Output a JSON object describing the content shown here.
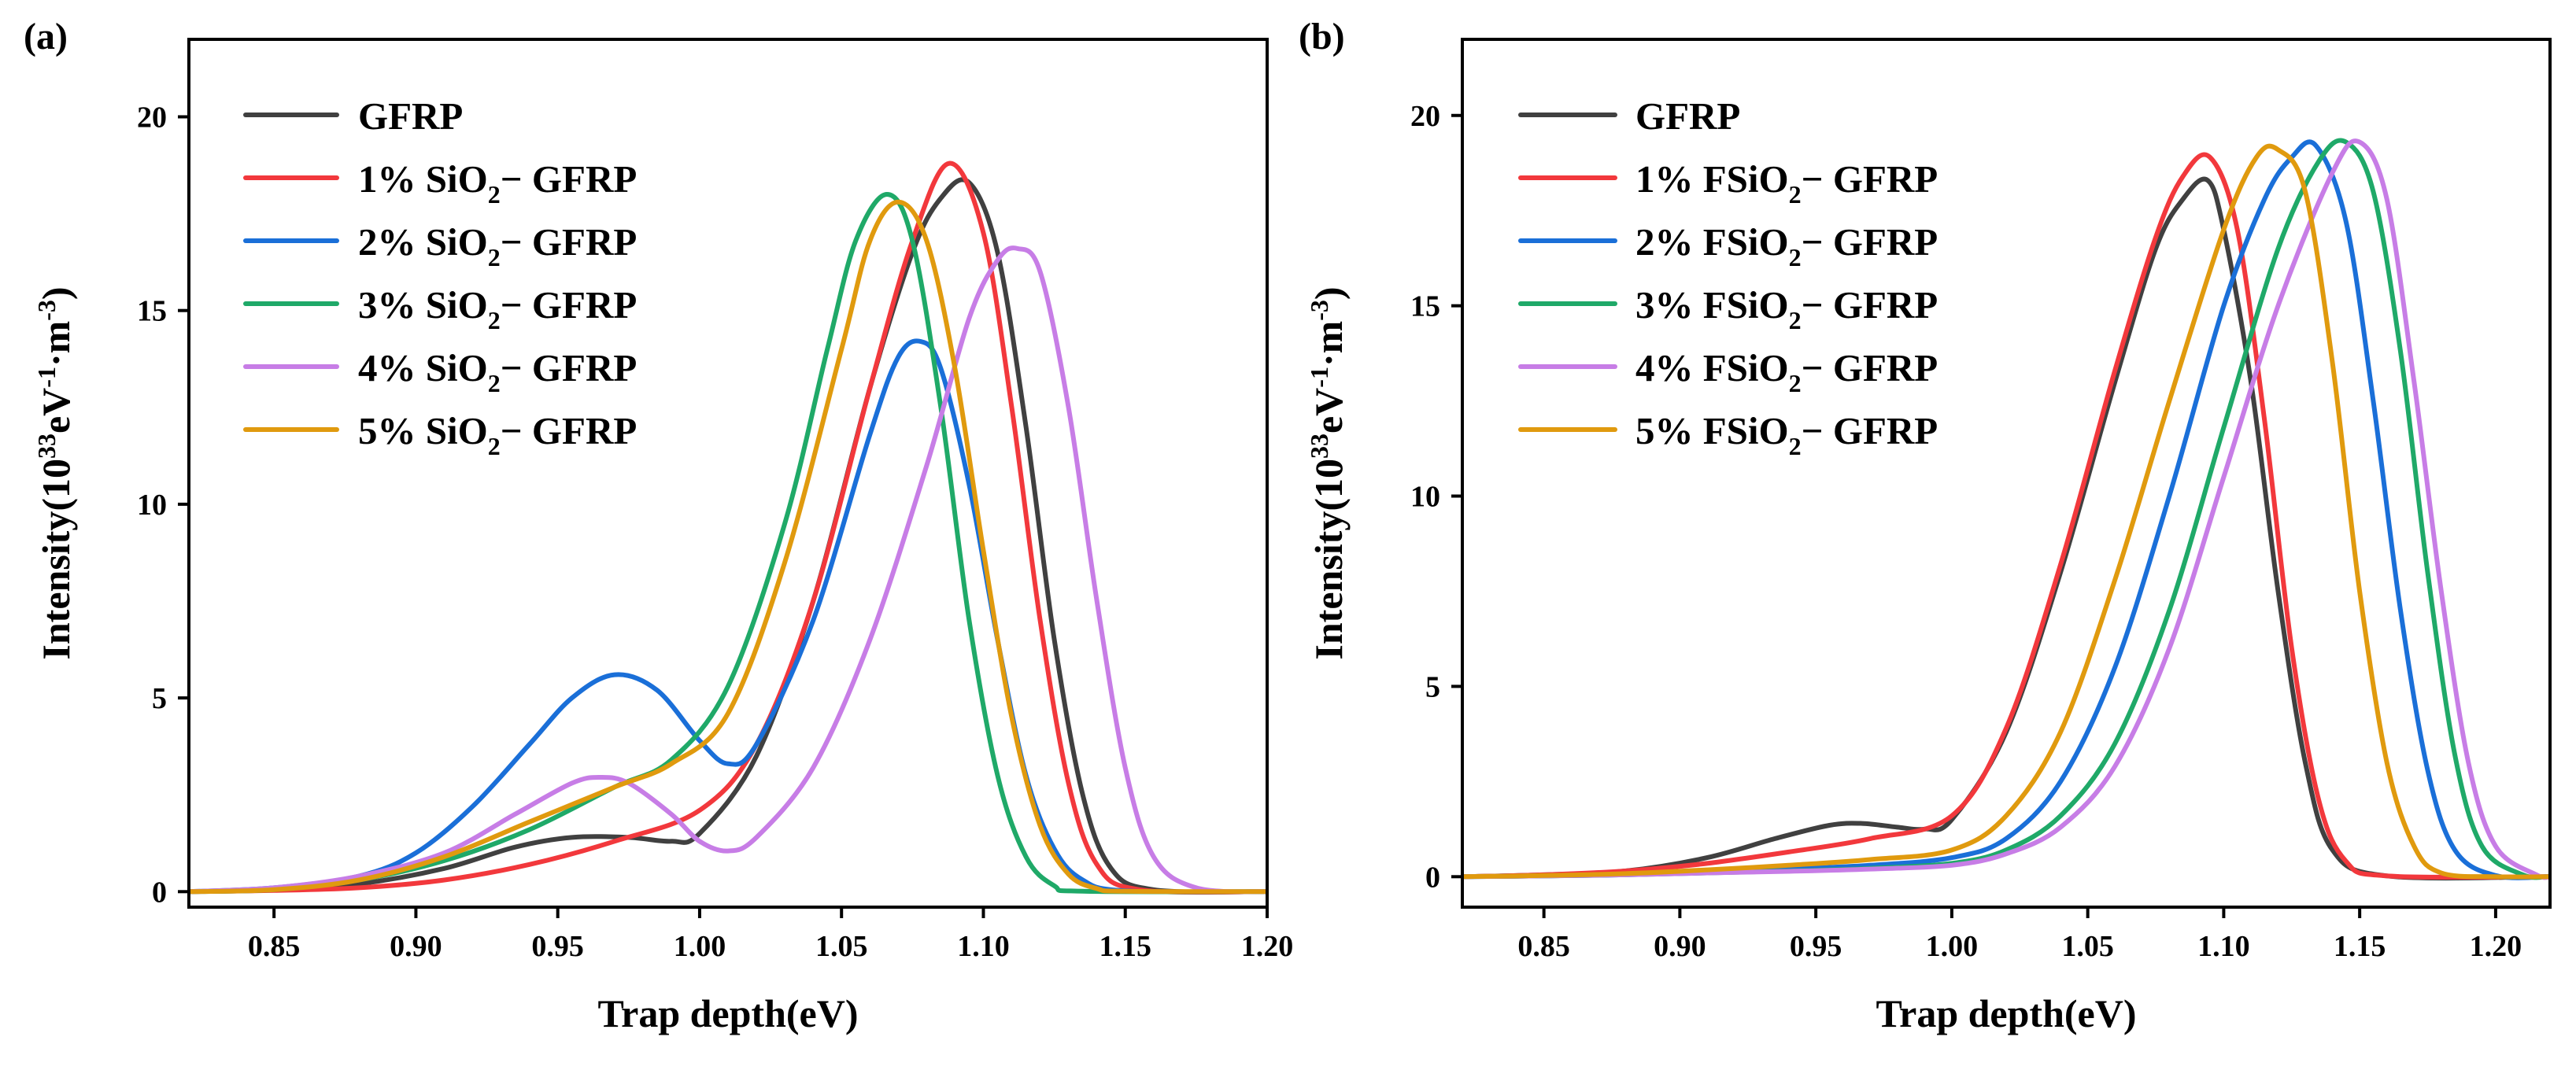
{
  "chart_data": [
    {
      "type": "line",
      "panel_label": "(a)",
      "xlabel": "Trap depth(eV)",
      "ylabel": "Intensity(10^33eV^-1·m^-3)",
      "ylabel_parts": [
        "Intensity(10",
        "33",
        "eV",
        "-1",
        "·m",
        "-3",
        ")"
      ],
      "xlim": [
        0.82,
        1.2
      ],
      "ylim": [
        -0.4,
        22.0
      ],
      "xticks": [
        0.85,
        0.9,
        0.95,
        1.0,
        1.05,
        1.1,
        1.15,
        1.2
      ],
      "xtick_labels": [
        "0.85",
        "0.90",
        "0.95",
        "1.00",
        "1.05",
        "1.10",
        "1.15",
        "1.20"
      ],
      "yticks": [
        0,
        5,
        10,
        15,
        20
      ],
      "ytick_labels": [
        "0",
        "5",
        "10",
        "15",
        "20"
      ],
      "legend_position": "top-left",
      "series": [
        {
          "name": "GFRP",
          "name_parts": [
            "GFRP"
          ],
          "color": "#404040",
          "x": [
            0.82,
            0.85,
            0.88,
            0.91,
            0.935,
            0.955,
            0.975,
            0.99,
            1.0,
            1.02,
            1.04,
            1.06,
            1.075,
            1.085,
            1.095,
            1.105,
            1.115,
            1.125,
            1.135,
            1.145,
            1.16,
            1.2
          ],
          "values": [
            0,
            0.05,
            0.2,
            0.6,
            1.15,
            1.4,
            1.4,
            1.3,
            1.5,
            3.5,
            7.5,
            13.0,
            16.5,
            17.9,
            18.3,
            16.5,
            12.0,
            6.5,
            2.5,
            0.6,
            0.05,
            0
          ]
        },
        {
          "name": "1% SiO2− GFRP",
          "name_parts": [
            "1% SiO",
            "2",
            "− GFRP"
          ],
          "color": "#f2383c",
          "x": [
            0.82,
            0.85,
            0.88,
            0.91,
            0.94,
            0.97,
            1.0,
            1.02,
            1.04,
            1.06,
            1.075,
            1.088,
            1.1,
            1.11,
            1.12,
            1.13,
            1.14,
            1.155,
            1.2
          ],
          "values": [
            0,
            0.03,
            0.1,
            0.3,
            0.7,
            1.3,
            2.1,
            3.8,
            7.5,
            13.0,
            16.8,
            18.8,
            17.0,
            12.5,
            7.0,
            2.8,
            0.7,
            0.05,
            0
          ]
        },
        {
          "name": "2% SiO2− GFRP",
          "name_parts": [
            "2% SiO",
            "2",
            "− GFRP"
          ],
          "color": "#1a6fd8",
          "x": [
            0.82,
            0.85,
            0.88,
            0.9,
            0.92,
            0.94,
            0.955,
            0.97,
            0.985,
            1.0,
            1.01,
            1.02,
            1.04,
            1.06,
            1.07,
            1.078,
            1.085,
            1.095,
            1.105,
            1.115,
            1.125,
            1.135,
            1.15,
            1.2
          ],
          "values": [
            0,
            0.1,
            0.4,
            1.0,
            2.2,
            3.8,
            5.0,
            5.6,
            5.2,
            3.9,
            3.3,
            3.8,
            7.0,
            11.8,
            13.8,
            14.2,
            13.5,
            10.5,
            6.5,
            3.0,
            1.1,
            0.3,
            0.02,
            0
          ]
        },
        {
          "name": "3% SiO2− GFRP",
          "name_parts": [
            "3% SiO",
            "2",
            "− GFRP"
          ],
          "color": "#1fa968",
          "x": [
            0.82,
            0.85,
            0.88,
            0.91,
            0.94,
            0.97,
            0.99,
            1.01,
            1.03,
            1.045,
            1.055,
            1.066,
            1.075,
            1.085,
            1.095,
            1.105,
            1.115,
            1.125,
            1.135,
            1.2
          ],
          "values": [
            0,
            0.05,
            0.3,
            0.8,
            1.6,
            2.7,
            3.4,
            5.3,
            9.5,
            14.0,
            16.8,
            18.0,
            16.8,
            12.5,
            7.0,
            3.0,
            0.9,
            0.15,
            0.01,
            0
          ]
        },
        {
          "name": "4% SiO2− GFRP",
          "name_parts": [
            "4% SiO",
            "2",
            "− GFRP"
          ],
          "color": "#c77de6",
          "x": [
            0.82,
            0.85,
            0.88,
            0.91,
            0.935,
            0.955,
            0.965,
            0.975,
            0.99,
            1.0,
            1.01,
            1.02,
            1.04,
            1.06,
            1.08,
            1.095,
            1.105,
            1.112,
            1.12,
            1.13,
            1.14,
            1.15,
            1.16,
            1.175,
            1.2
          ],
          "values": [
            0,
            0.1,
            0.4,
            1.0,
            2.0,
            2.8,
            2.95,
            2.8,
            2.0,
            1.3,
            1.05,
            1.4,
            3.2,
            6.5,
            11.0,
            14.8,
            16.3,
            16.6,
            16.0,
            12.5,
            7.5,
            3.2,
            0.9,
            0.1,
            0
          ]
        },
        {
          "name": "5% SiO2− GFRP",
          "name_parts": [
            "5% SiO",
            "2",
            "− GFRP"
          ],
          "color": "#e09a0e",
          "x": [
            0.82,
            0.85,
            0.88,
            0.91,
            0.94,
            0.97,
            0.99,
            1.01,
            1.03,
            1.05,
            1.06,
            1.07,
            1.08,
            1.09,
            1.1,
            1.11,
            1.12,
            1.13,
            1.14,
            1.15,
            1.2
          ],
          "values": [
            0,
            0.05,
            0.3,
            0.9,
            1.8,
            2.7,
            3.3,
            4.6,
            8.5,
            14.0,
            16.8,
            17.8,
            16.8,
            13.5,
            8.8,
            4.5,
            1.7,
            0.45,
            0.08,
            0.01,
            0
          ]
        }
      ]
    },
    {
      "type": "line",
      "panel_label": "(b)",
      "xlabel": "Trap depth(eV)",
      "ylabel": "Intensity(10^33eV^-1·m^-3)",
      "ylabel_parts": [
        "Intensity(10",
        "33",
        "eV",
        "-1",
        "·m",
        "-3",
        ")"
      ],
      "xlim": [
        0.82,
        1.22
      ],
      "ylim": [
        -0.8,
        22.0
      ],
      "xticks": [
        0.85,
        0.9,
        0.95,
        1.0,
        1.05,
        1.1,
        1.15,
        1.2
      ],
      "xtick_labels": [
        "0.85",
        "0.90",
        "0.95",
        "1.00",
        "1.05",
        "1.10",
        "1.15",
        "1.20"
      ],
      "yticks": [
        0,
        5,
        10,
        15,
        20
      ],
      "ytick_labels": [
        "0",
        "5",
        "10",
        "15",
        "20"
      ],
      "legend_position": "top-left",
      "series": [
        {
          "name": "GFRP",
          "name_parts": [
            "GFRP"
          ],
          "color": "#404040",
          "x": [
            0.82,
            0.85,
            0.88,
            0.91,
            0.935,
            0.955,
            0.967,
            0.98,
            0.99,
            1.0,
            1.02,
            1.04,
            1.06,
            1.075,
            1.085,
            1.094,
            1.1,
            1.11,
            1.12,
            1.13,
            1.14,
            1.16,
            1.22
          ],
          "values": [
            0,
            0.05,
            0.15,
            0.5,
            1.0,
            1.35,
            1.4,
            1.3,
            1.25,
            1.5,
            3.8,
            8.0,
            13.0,
            16.5,
            17.8,
            18.3,
            17.0,
            13.0,
            7.5,
            3.0,
            0.7,
            0.02,
            0
          ]
        },
        {
          "name": "1% FSiO2− GFRP",
          "name_parts": [
            "1% FSiO",
            "2",
            "− GFRP"
          ],
          "color": "#f2383c",
          "x": [
            0.82,
            0.85,
            0.88,
            0.91,
            0.94,
            0.97,
            1.0,
            1.02,
            1.04,
            1.06,
            1.075,
            1.085,
            1.095,
            1.105,
            1.115,
            1.125,
            1.135,
            1.145,
            1.16,
            1.22
          ],
          "values": [
            0,
            0.05,
            0.15,
            0.35,
            0.65,
            1.0,
            1.6,
            3.9,
            8.2,
            13.3,
            16.8,
            18.4,
            18.9,
            17.0,
            12.0,
            6.0,
            2.0,
            0.4,
            0.02,
            0
          ]
        },
        {
          "name": "2% FSiO2− GFRP",
          "name_parts": [
            "2% FSiO",
            "2",
            "− GFRP"
          ],
          "color": "#1a6fd8",
          "x": [
            0.82,
            0.85,
            0.88,
            0.91,
            0.94,
            0.97,
            1.0,
            1.02,
            1.04,
            1.06,
            1.08,
            1.1,
            1.115,
            1.125,
            1.134,
            1.145,
            1.155,
            1.165,
            1.175,
            1.185,
            1.2,
            1.22
          ],
          "values": [
            0,
            0.02,
            0.05,
            0.12,
            0.2,
            0.3,
            0.5,
            1.0,
            2.5,
            5.5,
            10.0,
            15.0,
            17.8,
            18.9,
            19.2,
            17.2,
            12.5,
            7.0,
            2.8,
            0.7,
            0.03,
            0
          ]
        },
        {
          "name": "3% FSiO2− GFRP",
          "name_parts": [
            "3% FSiO",
            "2",
            "− GFRP"
          ],
          "color": "#1fa968",
          "x": [
            0.82,
            0.85,
            0.88,
            0.91,
            0.94,
            0.97,
            1.0,
            1.02,
            1.04,
            1.06,
            1.08,
            1.1,
            1.12,
            1.135,
            1.145,
            1.155,
            1.165,
            1.175,
            1.185,
            1.195,
            1.21,
            1.22
          ],
          "values": [
            0,
            0.02,
            0.05,
            0.1,
            0.15,
            0.22,
            0.35,
            0.7,
            1.6,
            3.5,
            7.0,
            11.8,
            16.5,
            18.8,
            19.3,
            18.0,
            13.8,
            8.0,
            3.2,
            0.8,
            0.05,
            0
          ]
        },
        {
          "name": "4% FSiO2− GFRP",
          "name_parts": [
            "4% FSiO",
            "2",
            "− GFRP"
          ],
          "color": "#c77de6",
          "x": [
            0.82,
            0.85,
            0.88,
            0.91,
            0.94,
            0.97,
            1.0,
            1.02,
            1.04,
            1.06,
            1.08,
            1.1,
            1.12,
            1.14,
            1.15,
            1.16,
            1.17,
            1.18,
            1.19,
            1.2,
            1.215,
            1.22
          ],
          "values": [
            0,
            0.02,
            0.05,
            0.1,
            0.14,
            0.2,
            0.3,
            0.6,
            1.3,
            2.9,
            6.0,
            10.5,
            15.0,
            18.5,
            19.3,
            17.8,
            13.0,
            7.5,
            3.0,
            0.8,
            0.05,
            0
          ]
        },
        {
          "name": "5% FSiO2− GFRP",
          "name_parts": [
            "5% FSiO",
            "2",
            "− GFRP"
          ],
          "color": "#e09a0e",
          "x": [
            0.82,
            0.85,
            0.88,
            0.91,
            0.94,
            0.97,
            1.0,
            1.02,
            1.04,
            1.06,
            1.08,
            1.1,
            1.112,
            1.12,
            1.13,
            1.14,
            1.15,
            1.16,
            1.17,
            1.18,
            1.2,
            1.22
          ],
          "values": [
            0,
            0.03,
            0.08,
            0.18,
            0.3,
            0.45,
            0.7,
            1.6,
            3.8,
            7.8,
            12.5,
            17.0,
            18.9,
            19.1,
            18.0,
            13.5,
            7.5,
            3.0,
            0.8,
            0.1,
            0,
            0
          ]
        }
      ]
    }
  ]
}
